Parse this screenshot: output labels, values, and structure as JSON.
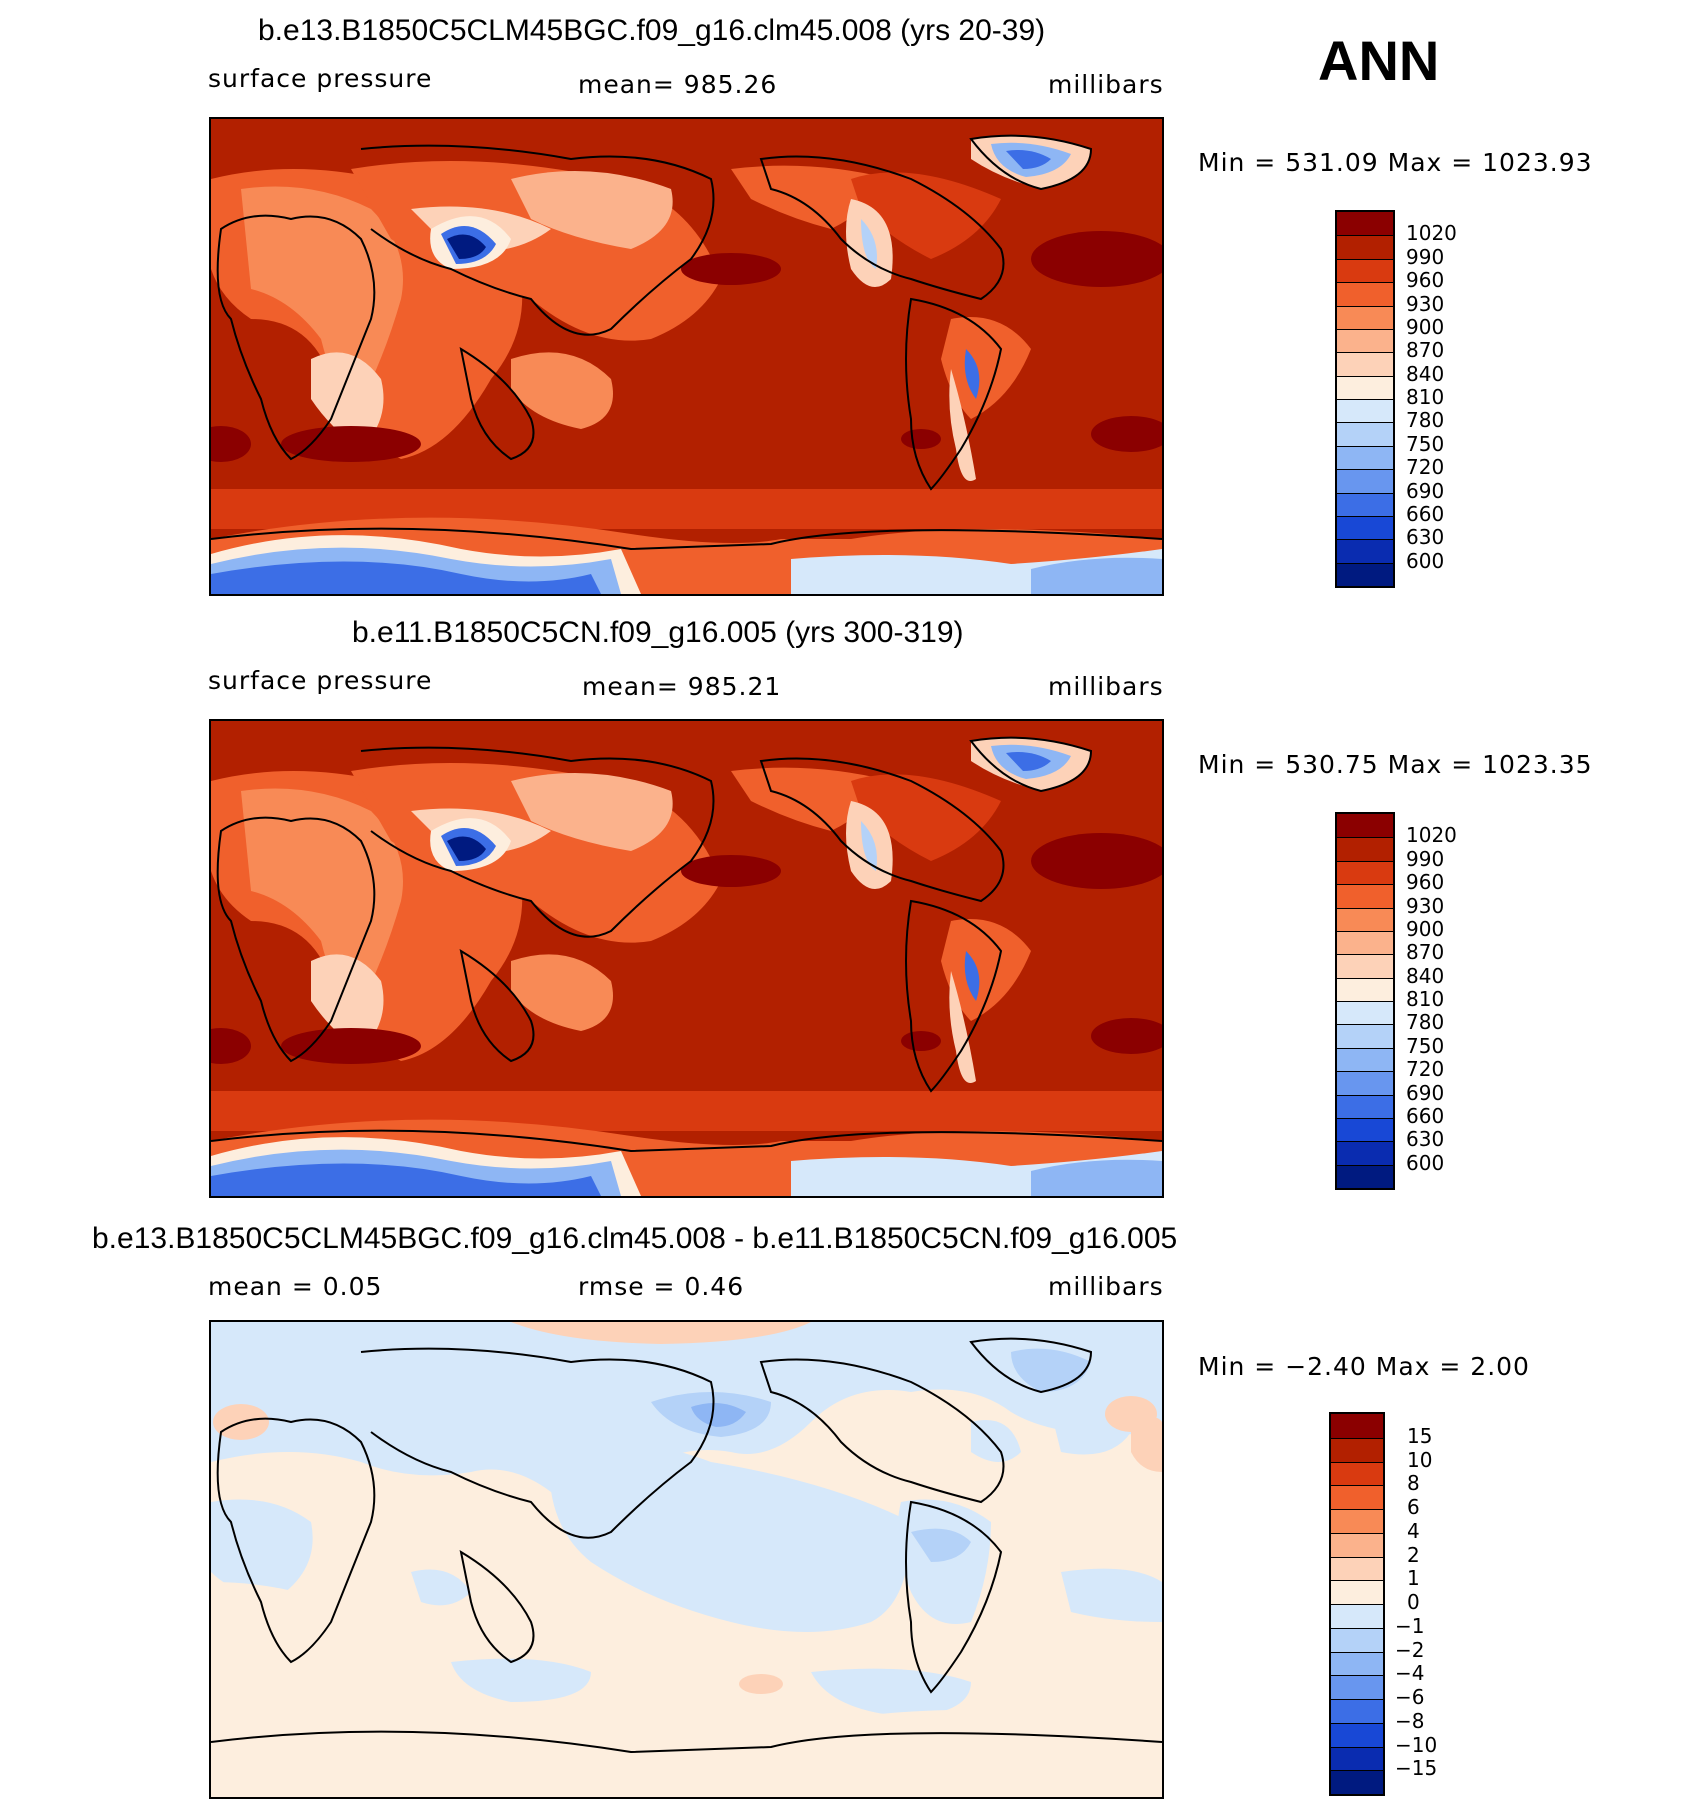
{
  "season": "ANN",
  "panels": [
    {
      "title": "b.e13.B1850C5CLM45BGC.f09_g16.clm45.008 (yrs 20-39)",
      "left_label": "surface pressure",
      "center_label": "mean=  985.26",
      "right_label": "millibars",
      "minmax": "Min  =  531.09  Max  =  1023.93",
      "kind": "abs",
      "colorbar": {
        "labels": [
          "1020",
          "990",
          "960",
          "930",
          "900",
          "870",
          "840",
          "810",
          "780",
          "750",
          "720",
          "690",
          "660",
          "630",
          "600"
        ],
        "colors": [
          "#8b0000",
          "#b22000",
          "#d93a10",
          "#f0602c",
          "#f88a56",
          "#fbb28c",
          "#fdd2b8",
          "#fdeede",
          "#d6e8fa",
          "#b4d2f8",
          "#8eb6f4",
          "#6896ef",
          "#3c6ee6",
          "#1848d6",
          "#0a2cb0",
          "#001a80"
        ]
      }
    },
    {
      "title": "b.e11.B1850C5CN.f09_g16.005 (yrs 300-319)",
      "left_label": "surface pressure",
      "center_label": "mean=  985.21",
      "right_label": "millibars",
      "minmax": "Min  =  530.75  Max  =  1023.35",
      "kind": "abs",
      "colorbar": {
        "labels": [
          "1020",
          "990",
          "960",
          "930",
          "900",
          "870",
          "840",
          "810",
          "780",
          "750",
          "720",
          "690",
          "660",
          "630",
          "600"
        ],
        "colors": [
          "#8b0000",
          "#b22000",
          "#d93a10",
          "#f0602c",
          "#f88a56",
          "#fbb28c",
          "#fdd2b8",
          "#fdeede",
          "#d6e8fa",
          "#b4d2f8",
          "#8eb6f4",
          "#6896ef",
          "#3c6ee6",
          "#1848d6",
          "#0a2cb0",
          "#001a80"
        ]
      }
    },
    {
      "title": "b.e13.B1850C5CLM45BGC.f09_g16.clm45.008 - b.e11.B1850C5CN.f09_g16.005",
      "left_label": "mean  =     0.05",
      "center_label": "rmse  =     0.46",
      "right_label": "millibars",
      "minmax": "Min  =    −2.40  Max  =     2.00",
      "kind": "diff",
      "colorbar": {
        "labels": [
          "15",
          "10",
          "8",
          "6",
          "4",
          "2",
          "1",
          "0",
          "−1",
          "−2",
          "−4",
          "−6",
          "−8",
          "−10",
          "−15"
        ],
        "colors": [
          "#8b0000",
          "#b22000",
          "#d93a10",
          "#f0602c",
          "#f88a56",
          "#fbb28c",
          "#fdd2b8",
          "#fdeede",
          "#d6e8fa",
          "#b4d2f8",
          "#8eb6f4",
          "#6896ef",
          "#3c6ee6",
          "#1848d6",
          "#0a2cb0",
          "#001a80"
        ]
      }
    }
  ],
  "chart_data": [
    {
      "type": "heatmap",
      "title": "b.e13.B1850C5CLM45BGC.f09_g16.clm45.008 (yrs 20-39)",
      "variable": "surface pressure",
      "units": "millibars",
      "mean": 985.26,
      "min": 531.09,
      "max": 1023.93,
      "contour_levels": [
        600,
        630,
        660,
        690,
        720,
        750,
        780,
        810,
        840,
        870,
        900,
        930,
        960,
        990,
        1020
      ]
    },
    {
      "type": "heatmap",
      "title": "b.e11.B1850C5CN.f09_g16.005 (yrs 300-319)",
      "variable": "surface pressure",
      "units": "millibars",
      "mean": 985.21,
      "min": 530.75,
      "max": 1023.35,
      "contour_levels": [
        600,
        630,
        660,
        690,
        720,
        750,
        780,
        810,
        840,
        870,
        900,
        930,
        960,
        990,
        1020
      ]
    },
    {
      "type": "heatmap",
      "title": "b.e13.B1850C5CLM45BGC.f09_g16.clm45.008 - b.e11.B1850C5CN.f09_g16.005",
      "units": "millibars",
      "mean": 0.05,
      "rmse": 0.46,
      "min": -2.4,
      "max": 2.0,
      "contour_levels": [
        -15,
        -10,
        -8,
        -6,
        -4,
        -2,
        -1,
        0,
        1,
        2,
        4,
        6,
        8,
        10,
        15
      ]
    }
  ]
}
